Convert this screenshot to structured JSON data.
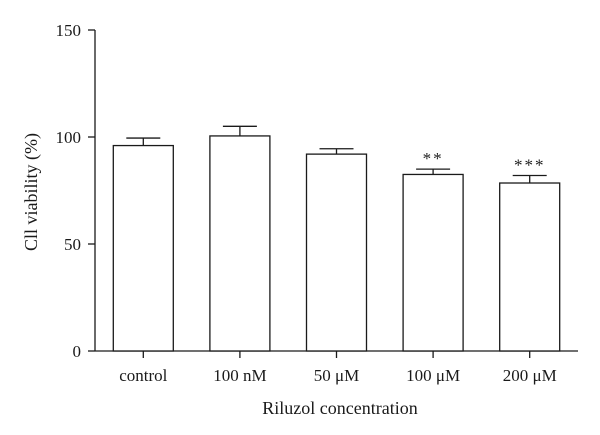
{
  "chart_data": {
    "type": "bar",
    "categories": [
      "control",
      "100 nM",
      "50 μM",
      "100 μM",
      "200 μM"
    ],
    "values": [
      96,
      100.5,
      92,
      82.5,
      78.5
    ],
    "errors": [
      3.5,
      4.5,
      2.5,
      2.5,
      3.5
    ],
    "significance": [
      "",
      "",
      "",
      "**",
      "***"
    ],
    "xlabel": "Riluzol concentration",
    "ylabel": "Cll viability (%)",
    "ylim": [
      0,
      150
    ],
    "yticks": [
      0,
      50,
      100,
      150
    ],
    "grid": false,
    "legend": "none"
  }
}
